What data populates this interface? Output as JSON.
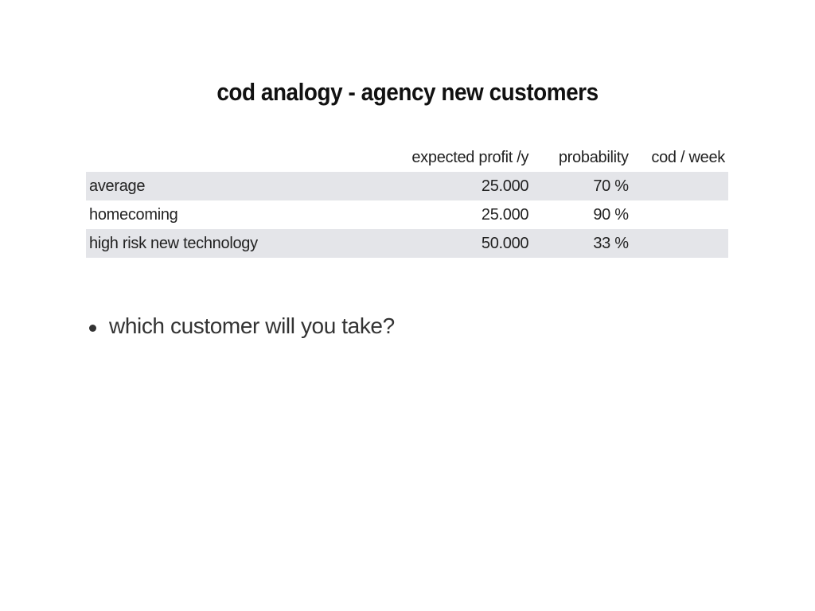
{
  "slide": {
    "title": "cod analogy - agency new customers"
  },
  "table": {
    "headers": {
      "name": "",
      "expected_profit": "expected profit /y",
      "probability": "probability",
      "cod_week": "cod / week"
    },
    "rows": [
      {
        "name": "average",
        "expected_profit": "25.000",
        "probability": "70 %",
        "cod_week": ""
      },
      {
        "name": "homecoming",
        "expected_profit": "25.000",
        "probability": "90 %",
        "cod_week": ""
      },
      {
        "name": "high risk new technology",
        "expected_profit": "50.000",
        "probability": "33 %",
        "cod_week": ""
      }
    ]
  },
  "bullets": [
    "which customer will you take?"
  ]
}
